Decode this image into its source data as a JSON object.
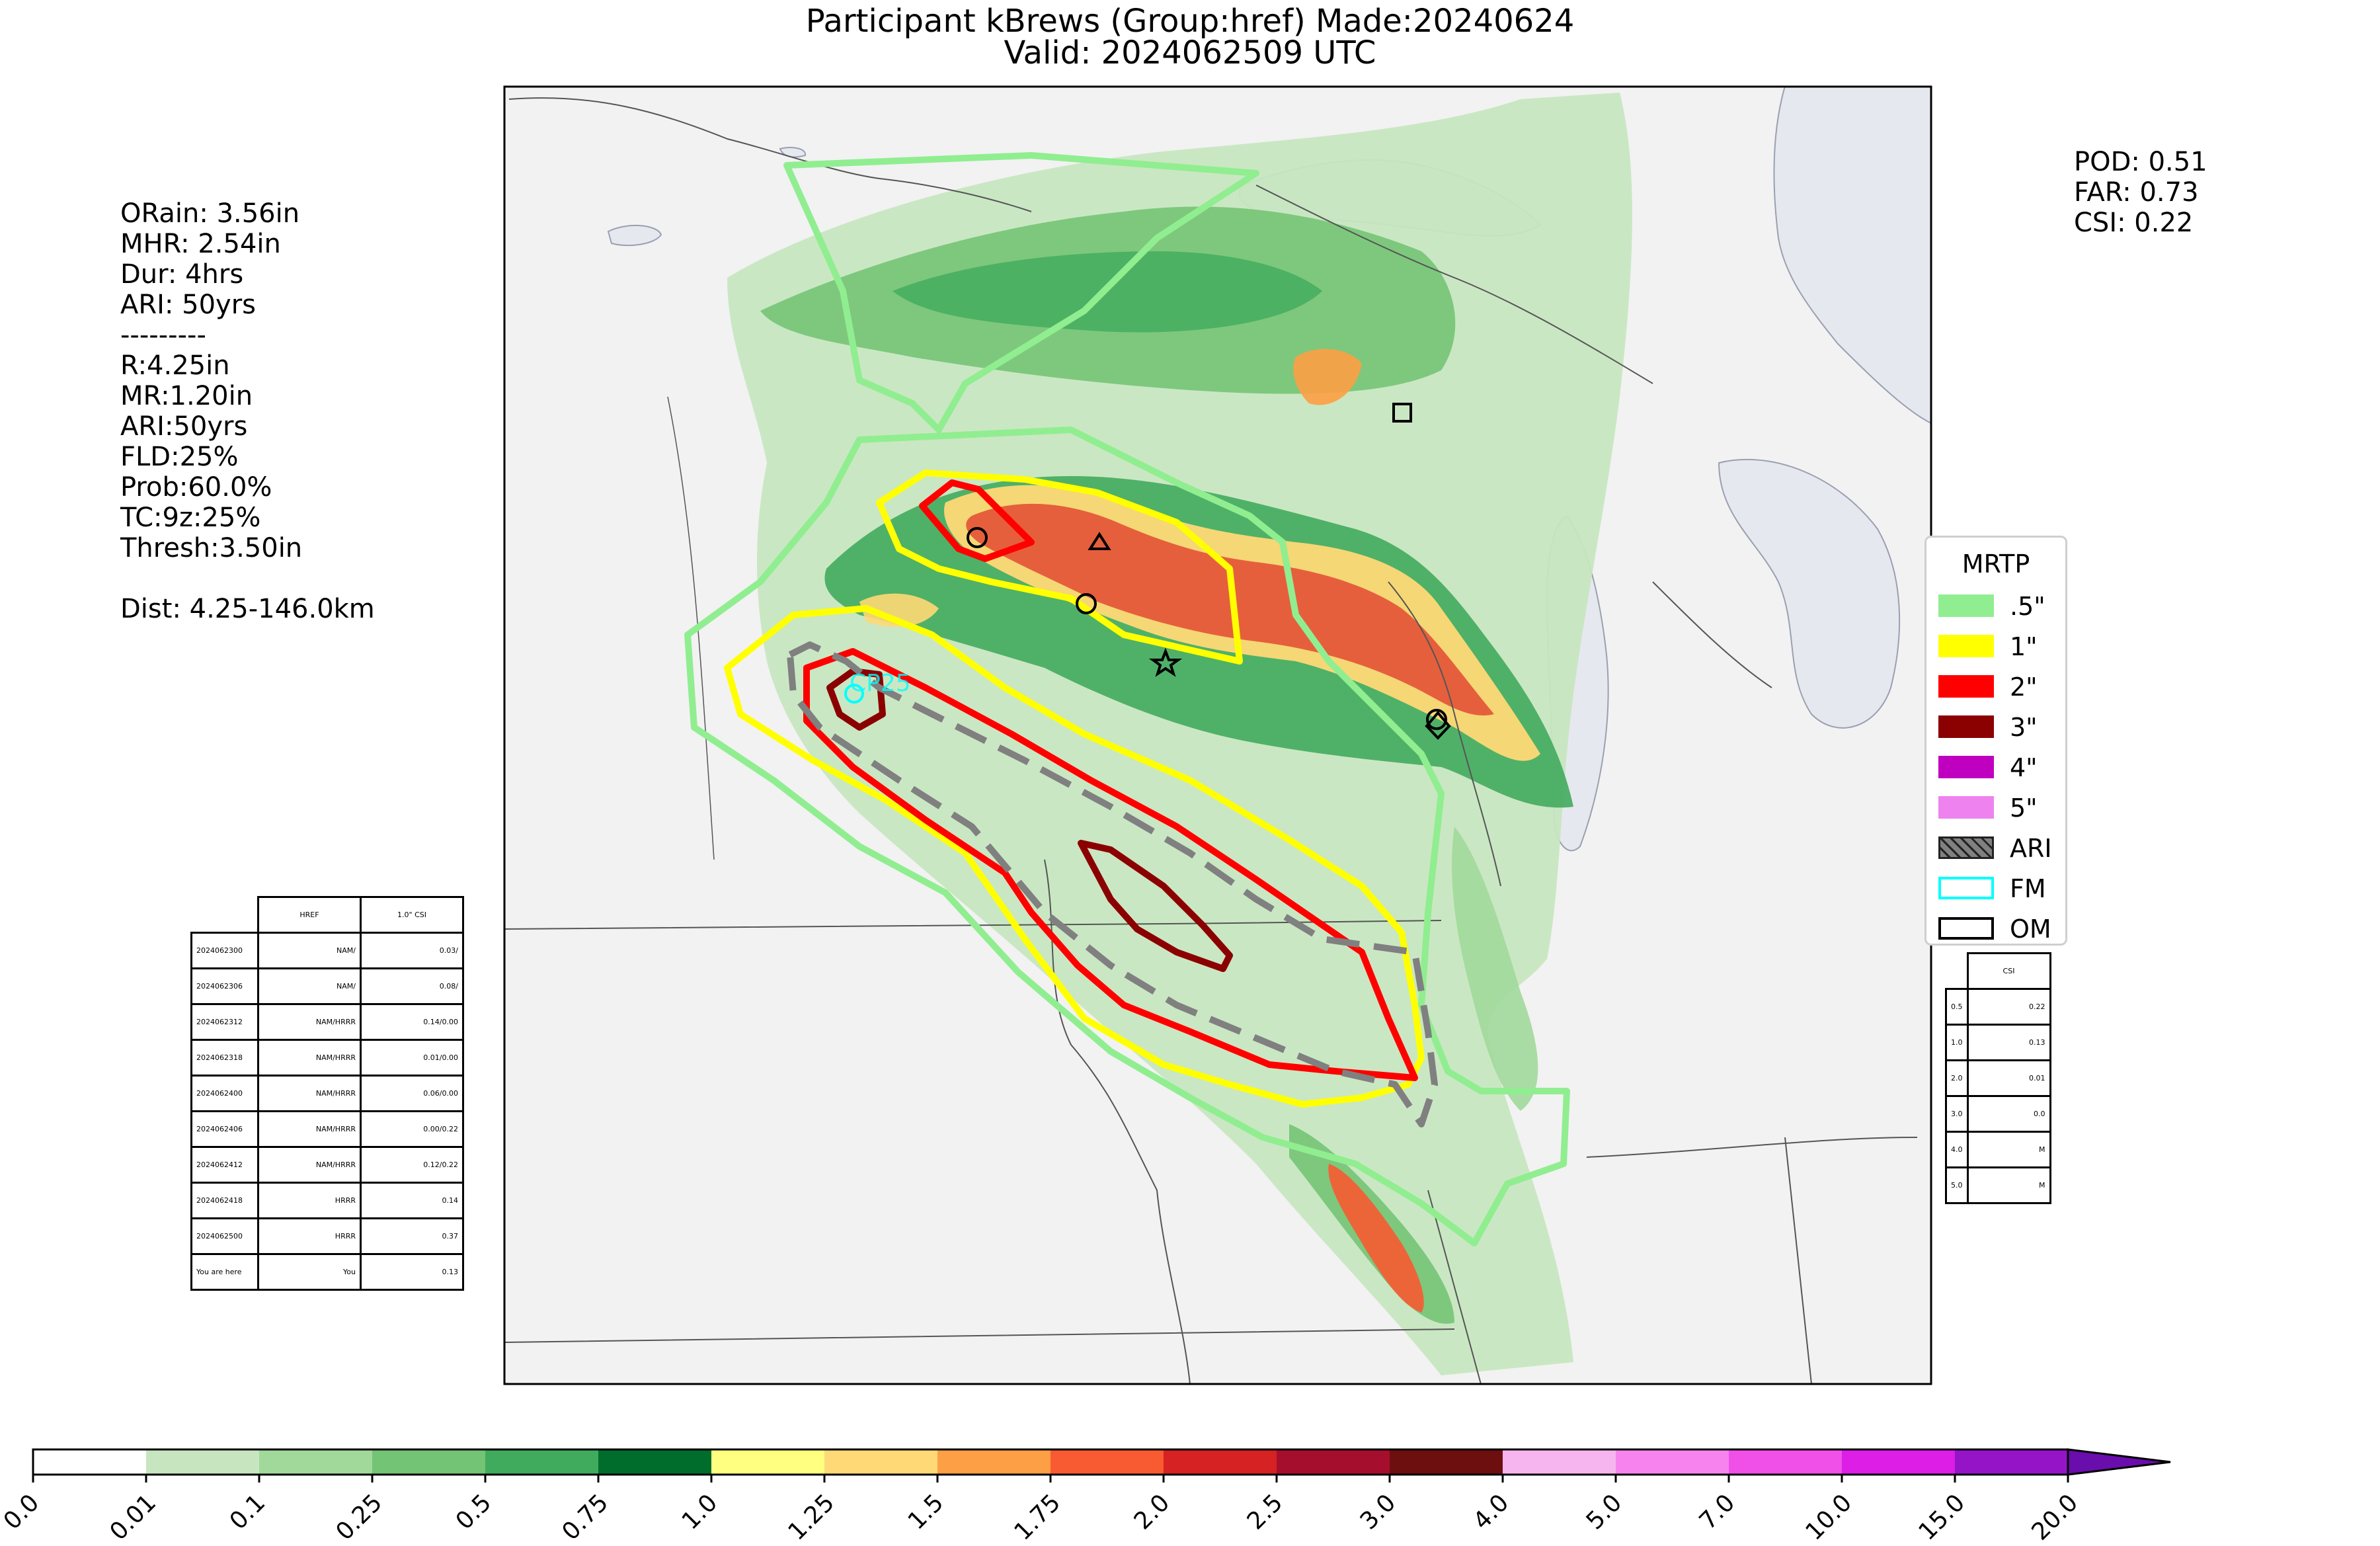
{
  "title": {
    "line1": "Participant kBrews (Group:href) Made:20240624",
    "line2": "Valid: 2024062509 UTC"
  },
  "stats_left": [
    "ORain: 3.56in",
    "MHR: 2.54in",
    "Dur: 4hrs",
    "ARI: 50yrs",
    "---------",
    "R:4.25in",
    "MR:1.20in",
    "ARI:50yrs",
    "FLD:25%",
    "Prob:60.0%",
    "TC:9z:25%",
    "Thresh:3.50in",
    "",
    "Dist: 4.25-146.0km"
  ],
  "stats_right": [
    "POD: 0.51",
    "FAR: 0.73",
    "CSI: 0.22"
  ],
  "legend": {
    "title": "MRTP",
    "items": [
      {
        "label": ".5\"",
        "color": "#90ee90",
        "style": "fill"
      },
      {
        "label": "1\"",
        "color": "#ffff00",
        "style": "fill"
      },
      {
        "label": "2\"",
        "color": "#ff0000",
        "style": "fill"
      },
      {
        "label": "3\"",
        "color": "#8b0000",
        "style": "fill"
      },
      {
        "label": "4\"",
        "color": "#c000c0",
        "style": "fill"
      },
      {
        "label": "5\"",
        "color": "#ee82ee",
        "style": "fill"
      },
      {
        "label": "ARI",
        "color": "#808080",
        "style": "hatch"
      },
      {
        "label": "FM",
        "color": "#00ffff",
        "style": "outline"
      },
      {
        "label": "OM",
        "color": "#000000",
        "style": "outline"
      }
    ]
  },
  "table_left": {
    "header": [
      "",
      "HREF",
      "1.0\" CSI"
    ],
    "rows": [
      [
        "2024062300",
        "NAM/",
        "0.03/"
      ],
      [
        "2024062306",
        "NAM/",
        "0.08/"
      ],
      [
        "2024062312",
        "NAM/HRRR",
        "0.14/0.00"
      ],
      [
        "2024062318",
        "NAM/HRRR",
        "0.01/0.00"
      ],
      [
        "2024062400",
        "NAM/HRRR",
        "0.06/0.00"
      ],
      [
        "2024062406",
        "NAM/HRRR",
        "0.00/0.22"
      ],
      [
        "2024062412",
        "NAM/HRRR",
        "0.12/0.22"
      ],
      [
        "2024062418",
        "HRRR",
        "0.14"
      ],
      [
        "2024062500",
        "HRRR",
        "0.37"
      ],
      [
        "You are here",
        "You",
        "0.13"
      ]
    ]
  },
  "table_right": {
    "header": [
      "",
      "CSI"
    ],
    "rows": [
      [
        "0.5",
        "0.22"
      ],
      [
        "1.0",
        "0.13"
      ],
      [
        "2.0",
        "0.01"
      ],
      [
        "3.0",
        "0.0"
      ],
      [
        "4.0",
        "M"
      ],
      [
        "5.0",
        "M"
      ]
    ]
  },
  "colorbar": {
    "labels": [
      "0.0",
      "0.01",
      "0.1",
      "0.25",
      "0.5",
      "0.75",
      "1.0",
      "1.25",
      "1.5",
      "1.75",
      "2.0",
      "2.5",
      "3.0",
      "4.0",
      "5.0",
      "7.0",
      "10.0",
      "15.0",
      "20.0"
    ],
    "colors": [
      "#ffffff",
      "#c7e6c0",
      "#a1d99b",
      "#74c476",
      "#41ab5d",
      "#006d2c",
      "#ffff80",
      "#fed976",
      "#fd9f44",
      "#f85a32",
      "#d62222",
      "#a50f2d",
      "#6e0f0f",
      "#f7b5f0",
      "#f784ee",
      "#f050e8",
      "#dc1ee6",
      "#9614c8"
    ],
    "extend_color": "#6a0dad"
  },
  "map_marker_label": "CP25"
}
